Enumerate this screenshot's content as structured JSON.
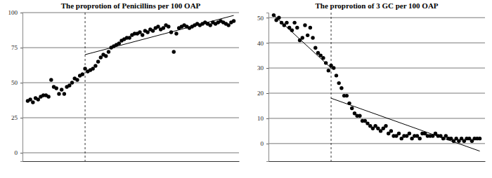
{
  "chart_data": [
    {
      "type": "scatter",
      "title": "The proprotion of Penicillins per 100 OAP",
      "x": [
        1,
        2,
        3,
        4,
        5,
        6,
        7,
        8,
        9,
        10,
        11,
        12,
        13,
        14,
        15,
        16,
        17,
        18,
        19,
        20,
        21,
        22,
        23,
        24,
        25,
        26,
        27,
        28,
        29,
        30,
        31,
        32,
        33,
        34,
        35,
        36,
        37,
        38,
        39,
        40,
        41,
        42,
        43,
        44,
        45,
        46,
        47,
        48,
        49,
        50,
        51,
        52,
        53,
        54,
        55,
        56,
        57,
        58,
        59,
        60,
        61,
        62,
        63,
        64,
        65,
        66,
        67,
        68,
        69,
        70,
        71,
        72,
        73,
        74,
        75,
        76,
        77,
        78,
        79,
        80
      ],
      "series": [
        {
          "type": "scatter",
          "color": "#000000",
          "marker": "circle",
          "values": [
            37,
            38,
            36,
            39,
            38,
            40,
            41,
            41,
            40,
            52,
            47,
            46,
            42,
            45,
            42,
            47,
            48,
            50,
            53,
            52,
            55,
            56,
            60,
            58,
            59,
            60,
            62,
            65,
            68,
            70,
            69,
            72,
            75,
            76,
            77,
            78,
            80,
            81,
            82,
            82,
            84,
            85,
            85,
            86,
            84,
            87,
            86,
            88,
            87,
            89,
            90,
            88,
            89,
            91,
            90,
            86,
            72,
            85,
            89,
            90,
            91,
            90,
            89,
            90,
            91,
            92,
            91,
            92,
            93,
            92,
            91,
            93,
            92,
            93,
            94,
            93,
            92,
            91,
            93,
            94
          ]
        },
        {
          "type": "line",
          "color": "#000000",
          "line_style": "solid",
          "x": [
            23,
            80
          ],
          "values": [
            70,
            98
          ]
        }
      ],
      "xlim": [
        -1,
        82
      ],
      "ylim": [
        -6,
        100
      ],
      "yticks": [
        0,
        25,
        50,
        75,
        100
      ],
      "grid": true,
      "tick_labels": "y",
      "breakpoint": 23
    },
    {
      "type": "scatter",
      "title": "The proprotion of 3 GC per 100 OAP",
      "x": [
        1,
        2,
        3,
        4,
        5,
        6,
        7,
        8,
        9,
        10,
        11,
        12,
        13,
        14,
        15,
        16,
        17,
        18,
        19,
        20,
        21,
        22,
        23,
        24,
        25,
        26,
        27,
        28,
        29,
        30,
        31,
        32,
        33,
        34,
        35,
        36,
        37,
        38,
        39,
        40,
        41,
        42,
        43,
        44,
        45,
        46,
        47,
        48,
        49,
        50,
        51,
        52,
        53,
        54,
        55,
        56,
        57,
        58,
        59,
        60,
        61,
        62,
        63,
        64,
        65,
        66,
        67,
        68,
        69,
        70,
        71,
        72,
        73,
        74,
        75,
        76,
        77,
        78,
        79,
        80
      ],
      "series": [
        {
          "type": "scatter",
          "color": "#000000",
          "marker": "circle",
          "values": [
            51,
            49,
            50,
            48,
            47,
            48,
            46,
            45,
            48,
            46,
            41,
            42,
            47,
            43,
            46,
            42,
            38,
            36,
            35,
            34,
            32,
            29,
            31,
            30,
            27,
            24,
            22,
            19,
            19,
            16,
            14,
            12,
            11,
            11,
            9,
            9,
            8,
            7,
            6,
            7,
            6,
            5,
            6,
            7,
            4,
            5,
            3,
            3,
            4,
            2,
            3,
            3,
            4,
            2,
            3,
            3,
            2,
            4,
            4,
            3,
            3,
            3,
            4,
            3,
            3,
            2,
            3,
            2,
            2,
            1,
            2,
            1,
            2,
            1,
            2,
            2,
            1,
            2,
            2,
            2
          ]
        },
        {
          "type": "line",
          "color": "#000000",
          "line_style": "solid",
          "x": [
            1,
            23
          ],
          "values": [
            51,
            30
          ]
        },
        {
          "type": "line",
          "color": "#000000",
          "line_style": "solid",
          "x": [
            23,
            80
          ],
          "values": [
            18,
            -3
          ]
        }
      ],
      "xlim": [
        -1,
        82
      ],
      "ylim": [
        -7,
        52
      ],
      "yticks": [
        0,
        10,
        20,
        30,
        40,
        50
      ],
      "grid": true,
      "tick_labels": "y",
      "breakpoint": 23
    }
  ]
}
